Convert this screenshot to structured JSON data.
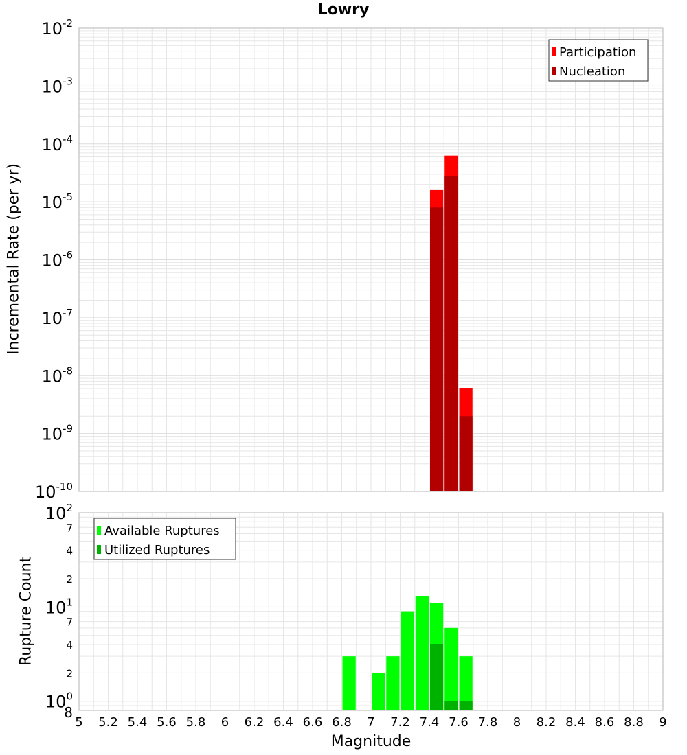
{
  "colors": {
    "participation": "#ff0000",
    "nucleation": "#b20000",
    "available": "#00ff00",
    "utilized": "#00b200",
    "grid": "#e6e6e6",
    "frame": "#b4b4b4"
  },
  "chart_data": [
    {
      "type": "bar",
      "title": "Lowry",
      "ylabel": "Incremental Rate (per yr)",
      "xlabel": "Magnitude",
      "yscale": "log",
      "ylim": [
        1e-10,
        0.01
      ],
      "xlim": [
        5,
        9
      ],
      "grid": true,
      "legend_position": "top-right",
      "series": [
        {
          "name": "Participation",
          "color": "#ff0000",
          "x": [
            7.45,
            7.55,
            7.65
          ],
          "values": [
            1.6e-05,
            6.3e-05,
            6e-09
          ]
        },
        {
          "name": "Nucleation",
          "color": "#b20000",
          "x": [
            7.45,
            7.55,
            7.65
          ],
          "values": [
            8e-06,
            2.8e-05,
            2e-09
          ]
        }
      ]
    },
    {
      "type": "bar",
      "ylabel": "Rupture Count",
      "xlabel": "Magnitude",
      "yscale": "log",
      "ylim": [
        0.8,
        100
      ],
      "xlim": [
        5,
        9
      ],
      "grid": true,
      "legend_position": "top-left",
      "series": [
        {
          "name": "Available Ruptures",
          "color": "#00ff00",
          "x": [
            6.85,
            7.05,
            7.15,
            7.25,
            7.35,
            7.45,
            7.55,
            7.65
          ],
          "values": [
            3,
            2,
            3,
            9,
            13,
            11,
            6,
            3
          ]
        },
        {
          "name": "Utilized Ruptures",
          "color": "#00b200",
          "x": [
            7.45,
            7.55,
            7.65
          ],
          "values": [
            4,
            1,
            1
          ]
        }
      ]
    }
  ],
  "top_ticks": [
    {
      "base": "10",
      "exp": "-2",
      "value": 0.01
    },
    {
      "base": "10",
      "exp": "-3",
      "value": 0.001
    },
    {
      "base": "10",
      "exp": "-4",
      "value": 0.0001
    },
    {
      "base": "10",
      "exp": "-5",
      "value": 1e-05
    },
    {
      "base": "10",
      "exp": "-6",
      "value": 1e-06
    },
    {
      "base": "10",
      "exp": "-7",
      "value": 1e-07
    },
    {
      "base": "10",
      "exp": "-8",
      "value": 1e-08
    },
    {
      "base": "10",
      "exp": "-9",
      "value": 1e-09
    },
    {
      "base": "10",
      "exp": "-10",
      "value": 1e-10
    }
  ],
  "bottom_ticks": [
    {
      "base": "10",
      "exp": "2",
      "value": 100
    },
    {
      "base": "",
      "exp": "7",
      "value": 70
    },
    {
      "base": "",
      "exp": "4",
      "value": 40
    },
    {
      "base": "",
      "exp": "2",
      "value": 20
    },
    {
      "base": "10",
      "exp": "1",
      "value": 10
    },
    {
      "base": "",
      "exp": "7",
      "value": 7
    },
    {
      "base": "",
      "exp": "4",
      "value": 4
    },
    {
      "base": "",
      "exp": "2",
      "value": 2
    },
    {
      "base": "10",
      "exp": "0",
      "value": 1
    },
    {
      "base": "",
      "exp": "8",
      "value": 0.8
    }
  ],
  "x_ticks": [
    "5",
    "5.2",
    "5.4",
    "5.6",
    "5.8",
    "6",
    "6.2",
    "6.4",
    "6.6",
    "6.8",
    "7",
    "7.2",
    "7.4",
    "7.6",
    "7.8",
    "8",
    "8.2",
    "8.4",
    "8.6",
    "8.8",
    "9"
  ]
}
